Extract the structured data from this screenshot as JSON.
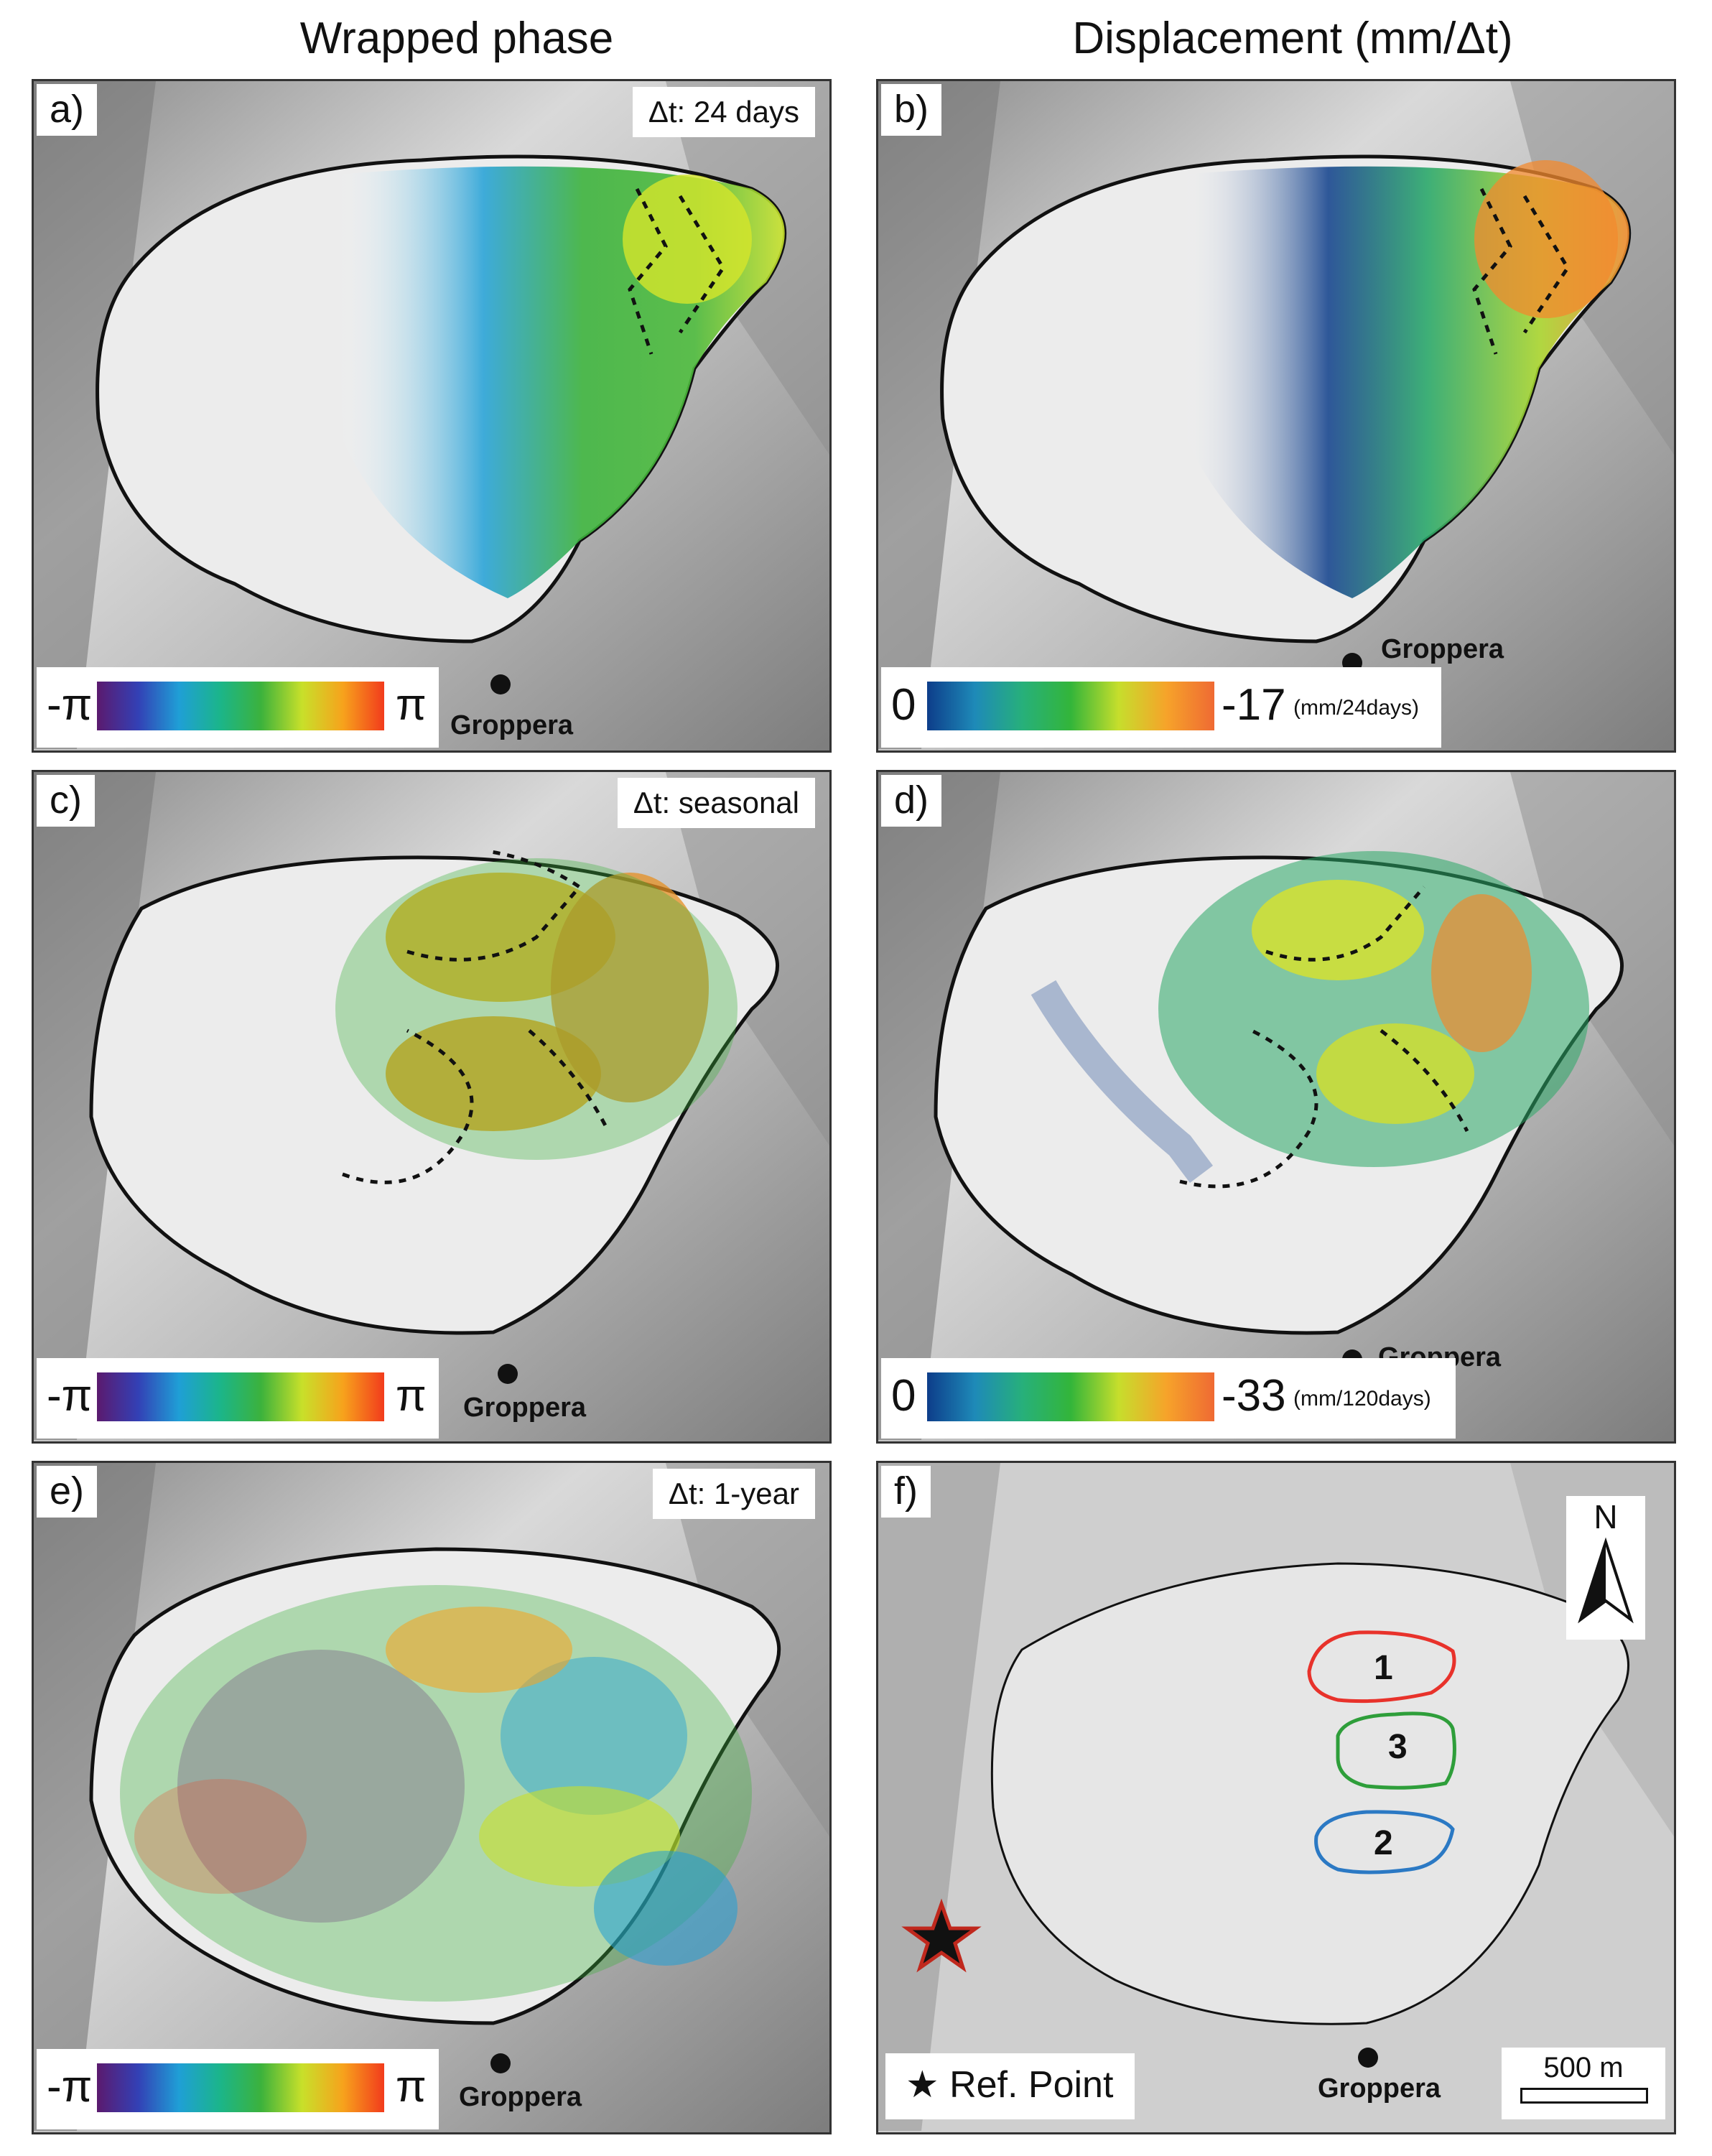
{
  "column_titles": {
    "left": "Wrapped phase",
    "right": "Displacement (mm/Δt)"
  },
  "panels": {
    "a": {
      "letter": "a)",
      "dt": "Δt:  24 days",
      "scale_min": "-π",
      "scale_max": "π",
      "place": "Groppera"
    },
    "b": {
      "letter": "b)",
      "scale_min": "0",
      "scale_max": "-17",
      "unit": "(mm/24days)",
      "place": "Groppera"
    },
    "c": {
      "letter": "c)",
      "dt": "Δt: seasonal",
      "scale_min": "-π",
      "scale_max": "π",
      "place": "Groppera"
    },
    "d": {
      "letter": "d)",
      "scale_min": "0",
      "scale_max": "-33",
      "unit": "(mm/120days)",
      "place": "Groppera"
    },
    "e": {
      "letter": "e)",
      "dt": "Δt: 1-year",
      "scale_min": "-π",
      "scale_max": "π",
      "place": "Groppera"
    },
    "f": {
      "letter": "f)",
      "north": "N",
      "zones": [
        "1",
        "3",
        "2"
      ],
      "ref_point": "Ref. Point",
      "scale_bar": "500 m",
      "place": "Groppera"
    }
  },
  "colors": {
    "phase_ramp": [
      "#5b1a6e",
      "#3340b5",
      "#1f9fd6",
      "#1bb58a",
      "#3cb23c",
      "#c8e02a",
      "#f7a21c",
      "#f23b1c"
    ],
    "disp_ramp": [
      "#0d3d8a",
      "#1e8ab8",
      "#27b07a",
      "#33b53a",
      "#c6de2c",
      "#f6a32a",
      "#ef6a33"
    ],
    "zone1": "#e8322b",
    "zone3": "#2e9e3a",
    "zone2": "#2b79c4",
    "ref_star": "#c0281d"
  }
}
